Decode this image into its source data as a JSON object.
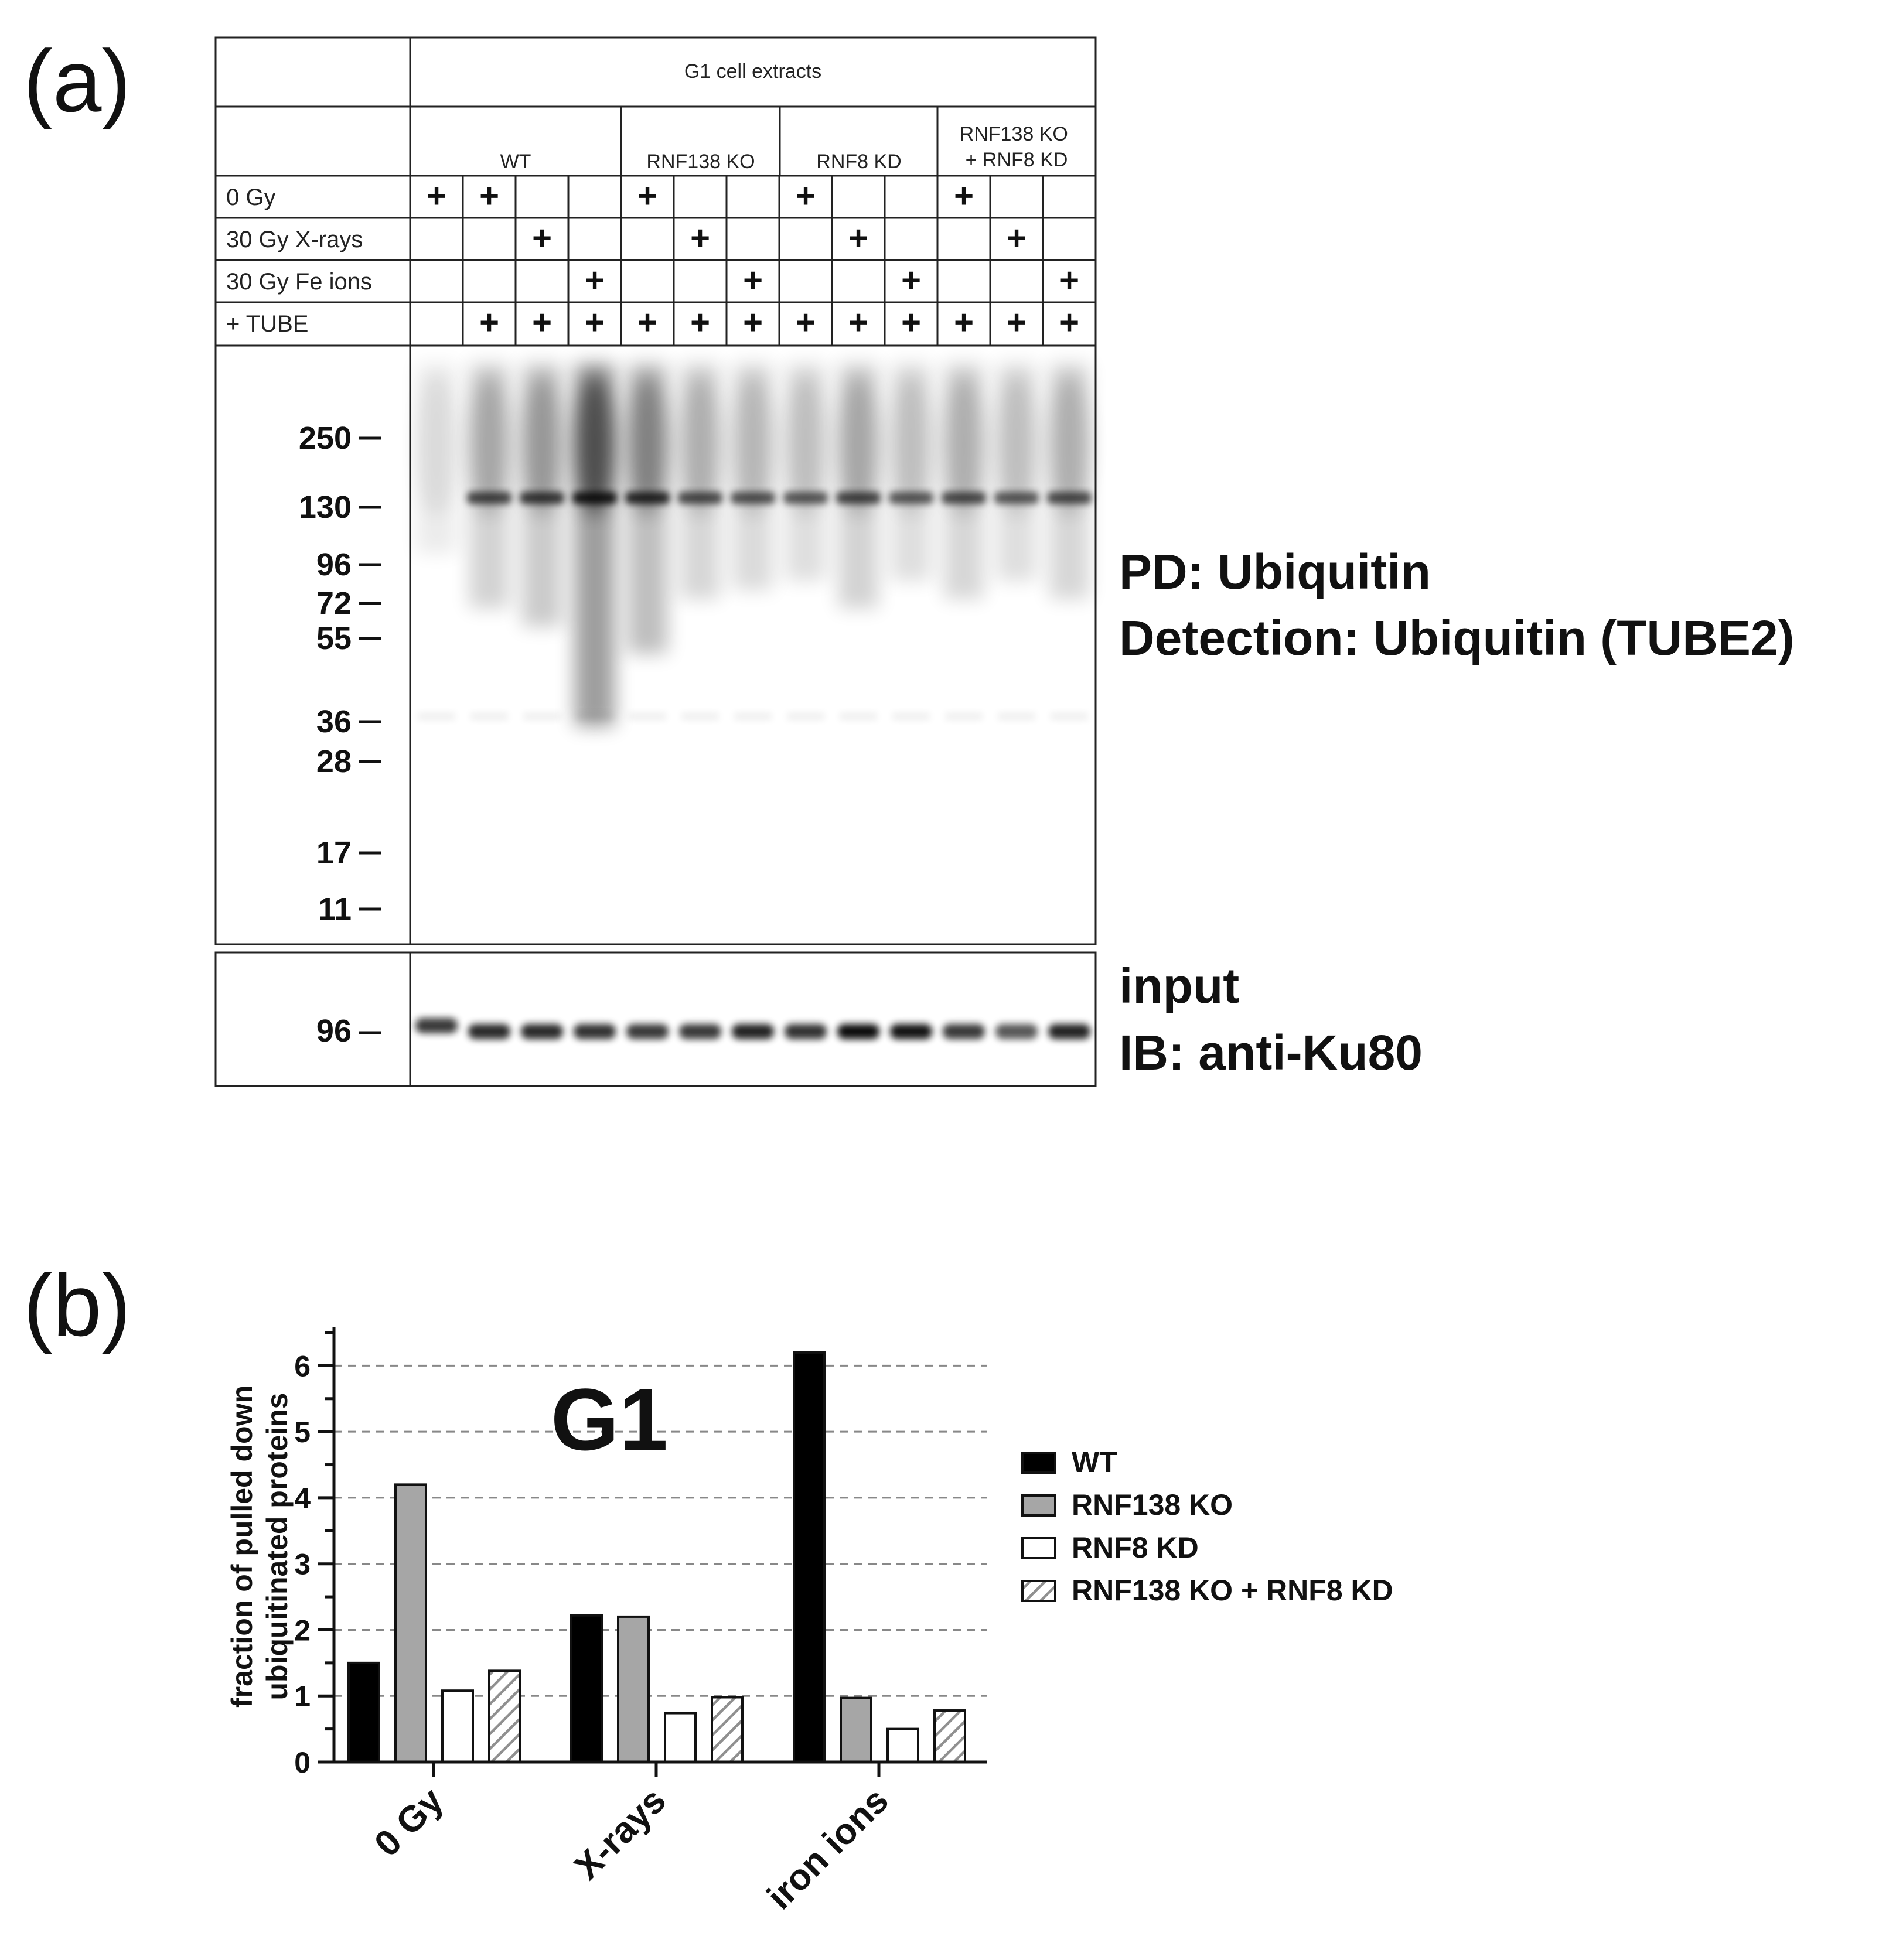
{
  "panel_a": {
    "label": "(a)",
    "header_title": "G1 cell extracts",
    "groups": [
      "WT",
      "RNF138 KO",
      "RNF8 KD",
      "RNF138 KO\n+ RNF8 KD"
    ],
    "rows": [
      {
        "label": "0 Gy",
        "marks": [
          1,
          1,
          0,
          0,
          1,
          0,
          0,
          1,
          0,
          0,
          1,
          0,
          0
        ]
      },
      {
        "label": "30 Gy X-rays",
        "marks": [
          0,
          0,
          1,
          0,
          0,
          1,
          0,
          0,
          1,
          0,
          0,
          1,
          0
        ]
      },
      {
        "label": "30 Gy Fe ions",
        "marks": [
          0,
          0,
          0,
          1,
          0,
          0,
          1,
          0,
          0,
          1,
          0,
          0,
          1
        ]
      },
      {
        "label": "+ TUBE",
        "marks": [
          0,
          1,
          1,
          1,
          1,
          1,
          1,
          1,
          1,
          1,
          1,
          1,
          1
        ]
      }
    ],
    "mark_symbol": "+",
    "mw_markers": [
      "250",
      "130",
      "96",
      "72",
      "55",
      "36",
      "28",
      "17",
      "11"
    ],
    "blot_label_line1": "PD: Ubiquitin",
    "blot_label_line2": "Detection: Ubiquitin (TUBE2)",
    "input_marker": "96",
    "input_label_line1": "input",
    "input_label_line2": "IB: anti-Ku80",
    "smear_intensity": [
      0.05,
      0.35,
      0.45,
      1.0,
      0.6,
      0.3,
      0.25,
      0.2,
      0.35,
      0.2,
      0.3,
      0.2,
      0.3
    ],
    "ku80_intensity": [
      0.7,
      0.8,
      0.8,
      0.75,
      0.7,
      0.7,
      0.85,
      0.75,
      1.0,
      0.95,
      0.7,
      0.5,
      0.85
    ]
  },
  "panel_b": {
    "label": "(b)",
    "chart_data": {
      "type": "bar",
      "title": "G1",
      "ylabel_line1": "fraction of pulled down",
      "ylabel_line2": "ubiquitinated proteins",
      "categories": [
        "0 Gy",
        "X-rays",
        "iron ions"
      ],
      "series": [
        {
          "name": "WT",
          "values": [
            1.5,
            2.22,
            6.2
          ],
          "fill": "#000000"
        },
        {
          "name": "RNF138 KO",
          "values": [
            4.2,
            2.2,
            0.97
          ],
          "fill": "#a6a6a6"
        },
        {
          "name": "RNF8 KD",
          "values": [
            1.08,
            0.74,
            0.5
          ],
          "fill": "#ffffff"
        },
        {
          "name": "RNF138 KO + RNF8 KD",
          "values": [
            1.38,
            0.98,
            0.78
          ],
          "fill": "hatch"
        }
      ],
      "ylim": [
        0,
        6.5
      ],
      "yticks": [
        "0",
        "1",
        "2",
        "3",
        "4",
        "5",
        "6"
      ],
      "grid": "dashed horizontal",
      "legend_position": "right"
    }
  }
}
